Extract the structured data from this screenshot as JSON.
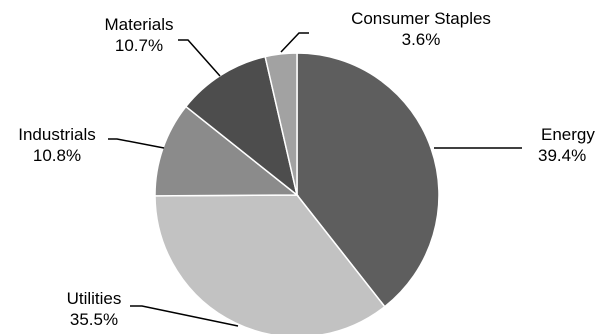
{
  "chart_data": {
    "type": "pie",
    "slices": [
      {
        "label": "Energy",
        "value": 39.4,
        "value_label": "39.4%",
        "color": "#5e5e5e"
      },
      {
        "label": "Utilities",
        "value": 35.5,
        "value_label": "35.5%",
        "color": "#c2c2c2"
      },
      {
        "label": "Industrials",
        "value": 10.8,
        "value_label": "10.8%",
        "color": "#8b8b8b"
      },
      {
        "label": "Materials",
        "value": 10.7,
        "value_label": "10.7%",
        "color": "#4d4d4d"
      },
      {
        "label": "Consumer Staples",
        "value": 3.6,
        "value_label": "3.6%",
        "color": "#a2a2a2"
      }
    ],
    "legend": "none",
    "labels": "outside with leader lines"
  }
}
